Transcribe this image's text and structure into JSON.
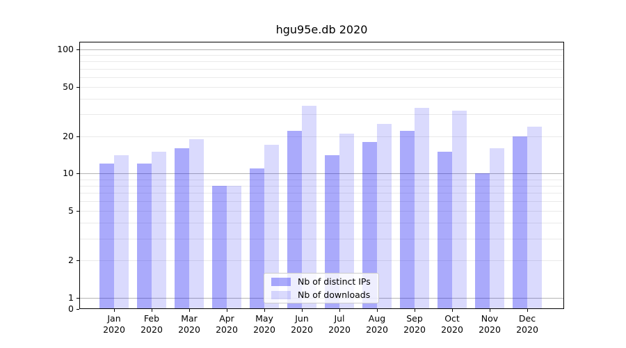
{
  "title": "hgu95e.db 2020",
  "chart_data": {
    "type": "bar",
    "title": "hgu95e.db 2020",
    "xlabel": "",
    "ylabel": "",
    "yscale": "log",
    "ylim": [
      0,
      115
    ],
    "yticks": [
      0,
      1,
      2,
      5,
      10,
      20,
      50,
      100
    ],
    "grid": "major-and-minor, horizontal only",
    "legend_position": "lower center inside plot",
    "months": [
      "Jan",
      "Feb",
      "Mar",
      "Apr",
      "May",
      "Jun",
      "Jul",
      "Aug",
      "Sep",
      "Oct",
      "Nov",
      "Dec"
    ],
    "year": "2020",
    "series": [
      {
        "name": "Nb of distinct IPs",
        "color": "#a9a9f9",
        "color_rgba": "rgba(20,20,245,0.36)",
        "values": [
          12,
          12,
          16,
          8,
          11,
          22,
          14,
          18,
          22,
          15,
          10,
          20
        ]
      },
      {
        "name": "Nb of downloads",
        "color": "#dbdbfa",
        "color_rgba": "rgba(20,20,245,0.155)",
        "values": [
          14,
          15,
          19,
          8,
          17,
          35,
          21,
          25,
          34,
          32,
          16,
          24
        ]
      }
    ]
  },
  "colors": {
    "background": "#ffffff",
    "text": "#000000",
    "major_gridline": "#b3b3b3",
    "minor_gridline": "#eaeaea",
    "axis": "#000000",
    "legend_border": "#cccccc"
  }
}
